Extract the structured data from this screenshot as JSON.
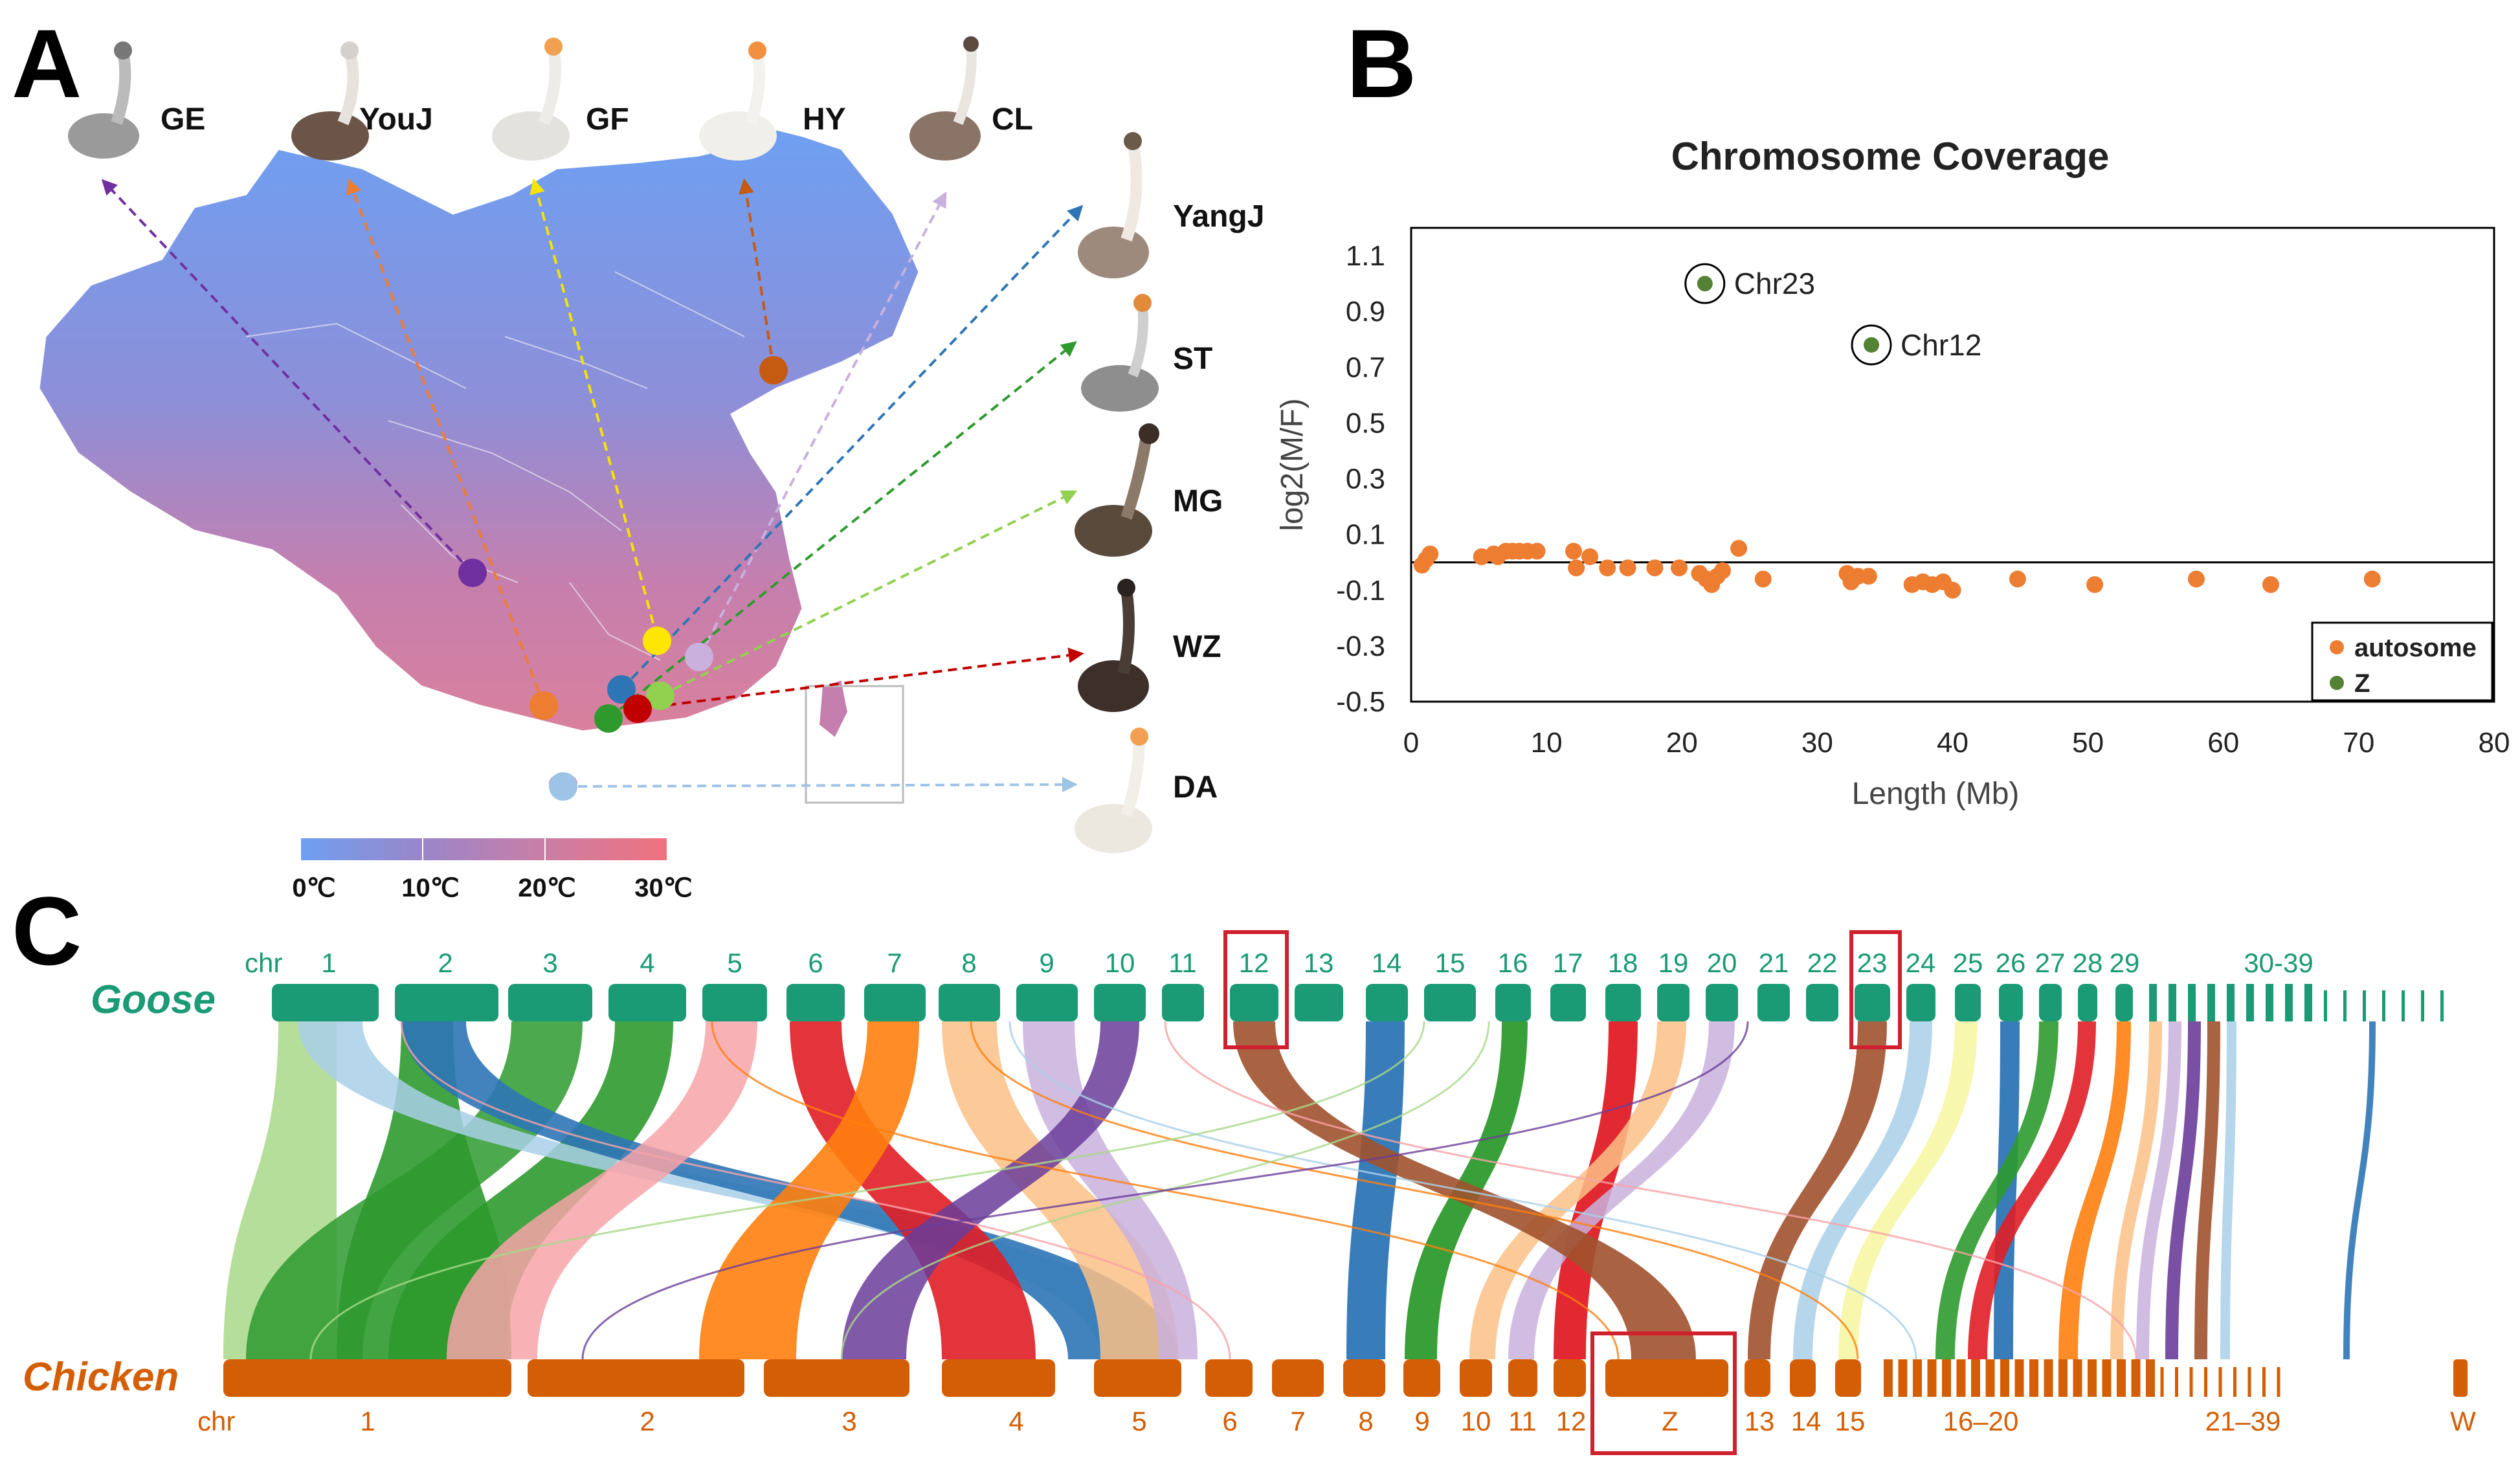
{
  "panels": {
    "a": "A",
    "b": "B",
    "c": "C"
  },
  "map": {
    "breeds": [
      "GE",
      "YouJ",
      "GF",
      "HY",
      "CL",
      "YangJ",
      "ST",
      "MG",
      "WZ",
      "DA"
    ],
    "temperature_legend": [
      "0℃",
      "10℃",
      "20℃",
      "30℃"
    ],
    "colors": {
      "cold": "#6f9ff1",
      "mid": "#9a86c9",
      "warm": "#c97ea6",
      "hot": "#f0727e"
    }
  },
  "chart_data": {
    "type": "scatter",
    "title": "Chromosome Coverage",
    "xlabel": "Length (Mb)",
    "ylabel": "log2(M/F)",
    "xlim": [
      0,
      80
    ],
    "ylim": [
      -0.5,
      1.2
    ],
    "xticks": [
      "0",
      "10",
      "20",
      "30",
      "40",
      "50",
      "60",
      "70",
      "80"
    ],
    "yticks": [
      "1.1",
      "0.9",
      "0.7",
      "0.5",
      "0.3",
      "0.1",
      "-0.1",
      "-0.3",
      "-0.5"
    ],
    "legend": [
      "autosome",
      "Z"
    ],
    "annotations": [
      "Chr23",
      "Chr12"
    ],
    "series": [
      {
        "name": "autosome",
        "color": "#ed7d31",
        "points": [
          [
            0.8,
            -0.01
          ],
          [
            1.1,
            0.01
          ],
          [
            1.4,
            0.03
          ],
          [
            5.2,
            0.02
          ],
          [
            6.1,
            0.03
          ],
          [
            6.4,
            0.02
          ],
          [
            7.0,
            0.04
          ],
          [
            7.5,
            0.04
          ],
          [
            8.0,
            0.04
          ],
          [
            8.6,
            0.04
          ],
          [
            9.3,
            0.04
          ],
          [
            12.0,
            0.04
          ],
          [
            12.2,
            -0.02
          ],
          [
            13.2,
            0.02
          ],
          [
            14.5,
            -0.02
          ],
          [
            16.0,
            -0.02
          ],
          [
            18.0,
            -0.02
          ],
          [
            19.8,
            -0.02
          ],
          [
            21.3,
            -0.04
          ],
          [
            21.8,
            -0.06
          ],
          [
            22.2,
            -0.08
          ],
          [
            22.6,
            -0.05
          ],
          [
            23.0,
            -0.03
          ],
          [
            24.2,
            0.05
          ],
          [
            26.0,
            -0.06
          ],
          [
            32.2,
            -0.04
          ],
          [
            32.5,
            -0.07
          ],
          [
            33.0,
            -0.05
          ],
          [
            33.8,
            -0.05
          ],
          [
            37.0,
            -0.08
          ],
          [
            37.8,
            -0.07
          ],
          [
            38.5,
            -0.08
          ],
          [
            39.3,
            -0.07
          ],
          [
            40.0,
            -0.1
          ],
          [
            44.8,
            -0.06
          ],
          [
            50.5,
            -0.08
          ],
          [
            58.0,
            -0.06
          ],
          [
            63.5,
            -0.08
          ],
          [
            71.0,
            -0.06
          ]
        ]
      },
      {
        "name": "Z",
        "color": "#548235",
        "points": [
          [
            21.7,
            1.0
          ],
          [
            34.0,
            0.78
          ]
        ]
      }
    ]
  },
  "synteny": {
    "goose_species": "Goose",
    "chicken_species": "Chicken",
    "goose_chr_prefix": "chr",
    "chicken_chr_prefix": "chr",
    "goose_labels": [
      "1",
      "2",
      "3",
      "4",
      "5",
      "6",
      "7",
      "8",
      "9",
      "10",
      "11",
      "12",
      "13",
      "14",
      "15",
      "16",
      "17",
      "18",
      "19",
      "20",
      "21",
      "22",
      "23",
      "24",
      "25",
      "26",
      "27",
      "28",
      "29",
      "30-39"
    ],
    "chicken_labels": [
      "1",
      "2",
      "3",
      "4",
      "5",
      "6",
      "7",
      "8",
      "9",
      "10",
      "11",
      "12",
      "Z",
      "13",
      "14",
      "15",
      "16–20",
      "21–39",
      "W"
    ],
    "highlighted_goose": [
      "12",
      "23"
    ],
    "highlighted_chicken": [
      "Z"
    ],
    "colors": {
      "goose": "#1a9a75",
      "chicken": "#d45e05",
      "highlight": "#d0202e"
    }
  }
}
